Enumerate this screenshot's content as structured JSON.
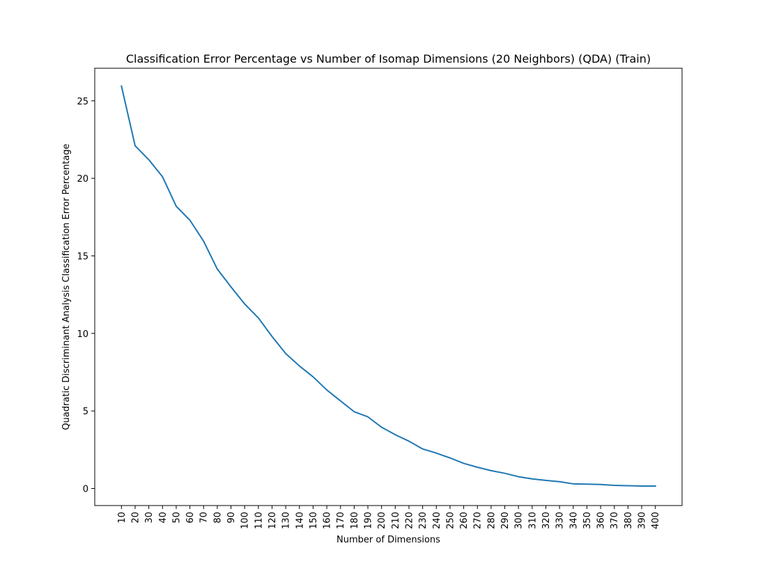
{
  "chart_data": {
    "type": "line",
    "title": "Classification Error Percentage vs Number of Isomap Dimensions (20 Neighbors) (QDA) (Train)",
    "xlabel": "Number of Dimensions",
    "ylabel": "Quadratic Discriminant Analysis Classification Error Percentage",
    "x": [
      10,
      20,
      30,
      40,
      50,
      60,
      70,
      80,
      90,
      100,
      110,
      120,
      130,
      140,
      150,
      160,
      170,
      180,
      190,
      200,
      210,
      220,
      230,
      240,
      250,
      260,
      270,
      280,
      290,
      300,
      310,
      320,
      330,
      340,
      350,
      360,
      370,
      380,
      390,
      400
    ],
    "x_tick_labels": [
      "10",
      "20",
      "30",
      "40",
      "50",
      "60",
      "70",
      "80",
      "90",
      "100",
      "110",
      "120",
      "130",
      "140",
      "150",
      "160",
      "170",
      "180",
      "190",
      "200",
      "210",
      "220",
      "230",
      "240",
      "250",
      "260",
      "270",
      "280",
      "290",
      "300",
      "310",
      "320",
      "330",
      "340",
      "350",
      "360",
      "370",
      "380",
      "390",
      "400"
    ],
    "y_ticks": [
      0,
      5,
      10,
      15,
      20,
      25
    ],
    "y_tick_labels": [
      "0",
      "5",
      "10",
      "15",
      "20",
      "25"
    ],
    "xlim": [
      -9.5,
      419.5
    ],
    "ylim": [
      -1.1,
      27.1
    ],
    "series": [
      {
        "color": "#1f77b4",
        "values": [
          25.95,
          22.1,
          21.2,
          20.1,
          18.2,
          17.3,
          15.95,
          14.15,
          13.0,
          11.9,
          11.0,
          9.8,
          8.7,
          7.9,
          7.2,
          6.35,
          5.65,
          4.95,
          4.62,
          3.95,
          3.47,
          3.05,
          2.55,
          2.28,
          1.97,
          1.62,
          1.37,
          1.15,
          0.98,
          0.76,
          0.62,
          0.52,
          0.44,
          0.3,
          0.28,
          0.26,
          0.2,
          0.18,
          0.16,
          0.16
        ]
      }
    ],
    "grid": false,
    "legend": false
  }
}
